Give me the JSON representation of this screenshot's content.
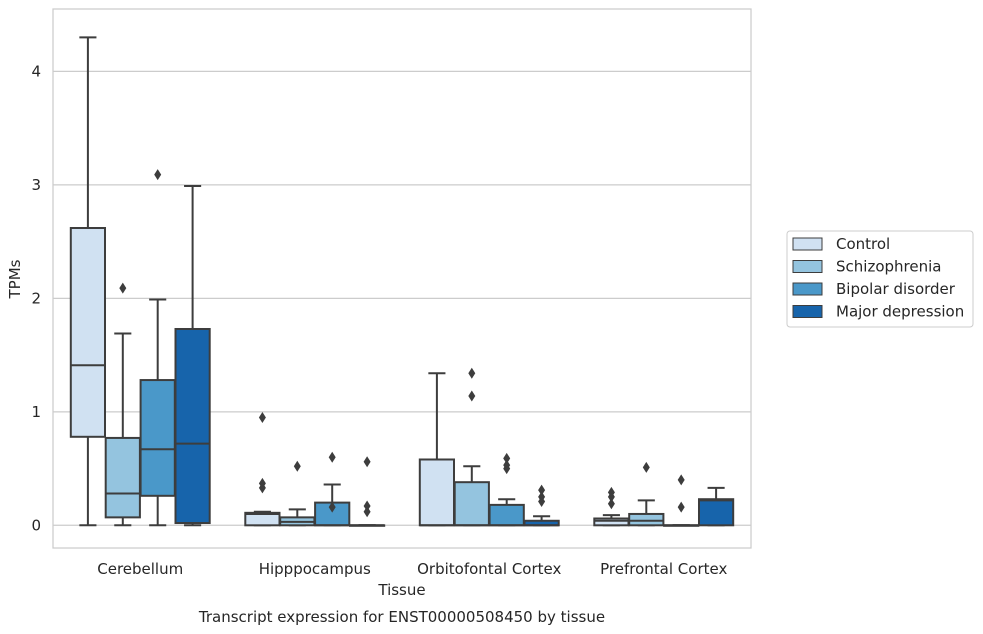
{
  "chart_data": {
    "type": "box",
    "xlabel": "Tissue",
    "ylabel": "TPMs",
    "caption": "Transcript expression for ENST00000508450 by tissue",
    "ylim": [
      -0.2,
      4.55
    ],
    "yticks": [
      0,
      1,
      2,
      3,
      4
    ],
    "grid": "horizontal",
    "legend_position": "right",
    "categories": [
      "Cerebellum",
      "Hipppocampus",
      "Orbitofontal Cortex",
      "Prefrontal Cortex"
    ],
    "series": [
      {
        "name": "Control",
        "color": "#d0e1f2",
        "boxes": [
          {
            "whislo": 0.0,
            "q1": 0.78,
            "med": 1.41,
            "q3": 2.62,
            "whishi": 4.3,
            "fliers": []
          },
          {
            "whislo": 0.0,
            "q1": 0.0,
            "med": 0.1,
            "q3": 0.11,
            "whishi": 0.12,
            "fliers": [
              0.33,
              0.37,
              0.95
            ]
          },
          {
            "whislo": 0.0,
            "q1": 0.0,
            "med": 0.0,
            "q3": 0.58,
            "whishi": 1.34,
            "fliers": []
          },
          {
            "whislo": 0.0,
            "q1": 0.0,
            "med": 0.04,
            "q3": 0.06,
            "whishi": 0.09,
            "fliers": [
              0.19,
              0.25,
              0.29
            ]
          }
        ]
      },
      {
        "name": "Schizophrenia",
        "color": "#94c4df",
        "boxes": [
          {
            "whislo": 0.0,
            "q1": 0.07,
            "med": 0.28,
            "q3": 0.77,
            "whishi": 1.69,
            "fliers": [
              2.09
            ]
          },
          {
            "whislo": 0.0,
            "q1": 0.0,
            "med": 0.03,
            "q3": 0.07,
            "whishi": 0.14,
            "fliers": [
              0.52
            ]
          },
          {
            "whislo": 0.0,
            "q1": 0.0,
            "med": 0.0,
            "q3": 0.38,
            "whishi": 0.52,
            "fliers": [
              1.14,
              1.34
            ]
          },
          {
            "whislo": 0.0,
            "q1": 0.0,
            "med": 0.04,
            "q3": 0.1,
            "whishi": 0.22,
            "fliers": [
              0.51
            ]
          }
        ]
      },
      {
        "name": "Bipolar disorder",
        "color": "#4a98c9",
        "boxes": [
          {
            "whislo": 0.0,
            "q1": 0.26,
            "med": 0.67,
            "q3": 1.28,
            "whishi": 1.99,
            "fliers": [
              3.09
            ]
          },
          {
            "whislo": 0.0,
            "q1": 0.0,
            "med": 0.0,
            "q3": 0.2,
            "whishi": 0.36,
            "fliers": [
              0.16,
              0.6
            ]
          },
          {
            "whislo": 0.0,
            "q1": 0.0,
            "med": 0.0,
            "q3": 0.18,
            "whishi": 0.23,
            "fliers": [
              0.5,
              0.53,
              0.59
            ]
          },
          {
            "whislo": 0.0,
            "q1": 0.0,
            "med": 0.0,
            "q3": 0.0,
            "whishi": 0.0,
            "fliers": [
              0.16,
              0.4
            ]
          }
        ]
      },
      {
        "name": "Major depression",
        "color": "#1764ab",
        "boxes": [
          {
            "whislo": 0.0,
            "q1": 0.02,
            "med": 0.72,
            "q3": 1.73,
            "whishi": 2.99,
            "fliers": []
          },
          {
            "whislo": 0.0,
            "q1": 0.0,
            "med": 0.0,
            "q3": 0.0,
            "whishi": 0.0,
            "fliers": [
              0.12,
              0.17,
              0.56
            ]
          },
          {
            "whislo": 0.0,
            "q1": 0.0,
            "med": 0.0,
            "q3": 0.04,
            "whishi": 0.08,
            "fliers": [
              0.21,
              0.25,
              0.31
            ]
          },
          {
            "whislo": 0.0,
            "q1": 0.0,
            "med": 0.22,
            "q3": 0.23,
            "whishi": 0.33,
            "fliers": []
          }
        ]
      }
    ]
  }
}
